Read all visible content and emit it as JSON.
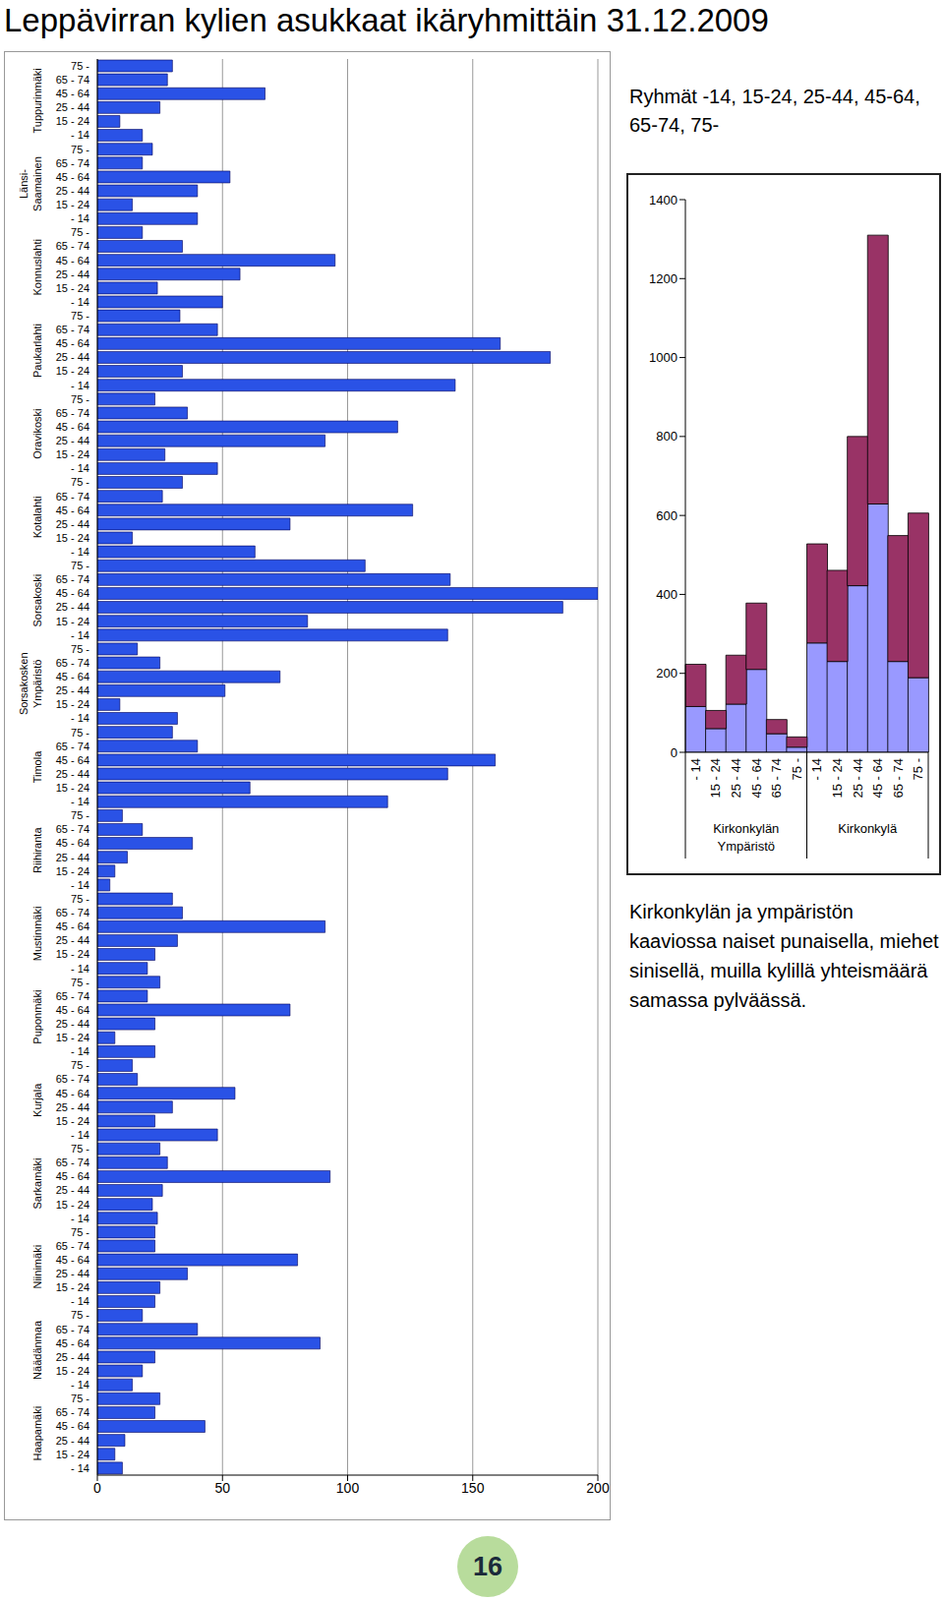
{
  "title": "Leppävirran kylien asukkaat ikäryhmittäin 31.12.2009",
  "page_number": 16,
  "chart_data": [
    {
      "type": "bar",
      "orientation": "horizontal",
      "groups": [
        "Tuppurinmäki",
        "Länsi-\nSaamainen",
        "Konnuslahti",
        "Paukarlahti",
        "Oravikoski",
        "Kotalahti",
        "Sorsakoski",
        "Sorsakosken\nYmpäristö",
        "Timola",
        "Riihiranta",
        "Mustinmäki",
        "Puponmäki",
        "Kurjala",
        "Sarkamäki",
        "Niinimäki",
        "Näädänmaa",
        "Haapamäki"
      ],
      "categories": [
        "75 -",
        "65 - 74",
        "45 - 64",
        "25 - 44",
        "15 - 24",
        "- 14",
        "75 -",
        "65 - 74",
        "45 - 64",
        "25 - 44",
        "15 - 24",
        "- 14",
        "75 -",
        "65 - 74",
        "45 - 64",
        "25 - 44",
        "15 - 24",
        "- 14",
        "75 -",
        "65 - 74",
        "45 - 64",
        "25 - 44",
        "15 - 24",
        "- 14",
        "75 -",
        "65 - 74",
        "45 - 64",
        "25 - 44",
        "15 - 24",
        "- 14",
        "75 -",
        "65 - 74",
        "45 - 64",
        "25 - 44",
        "15 - 24",
        "- 14",
        "75 -",
        "65 - 74",
        "45 - 64",
        "25 - 44",
        "15 - 24",
        "- 14",
        "75 -",
        "65 - 74",
        "45 - 64",
        "25 - 44",
        "15 - 24",
        "- 14",
        "75 -",
        "65 - 74",
        "45 - 64",
        "25 - 44",
        "15 - 24",
        "- 14",
        "75 -",
        "65 - 74",
        "45 - 64",
        "25 - 44",
        "15 - 24",
        "- 14",
        "75 -",
        "65 - 74",
        "45 - 64",
        "25 - 44",
        "15 - 24",
        "- 14",
        "75 -",
        "65 - 74",
        "45 - 64",
        "25 - 44",
        "15 - 24",
        "- 14",
        "75 -",
        "65 - 74",
        "45 - 64",
        "25 - 44",
        "15 - 24",
        "- 14",
        "75 -",
        "65 - 74",
        "45 - 64",
        "25 - 44",
        "15 - 24",
        "- 14",
        "75 -",
        "65 - 74",
        "45 - 64",
        "25 - 44",
        "15 - 24",
        "- 14",
        "75 -",
        "65 - 74",
        "45 - 64",
        "25 - 44",
        "15 - 24",
        "- 14",
        "75 -",
        "65 - 74",
        "45 - 64",
        "25 - 44",
        "15 - 24",
        "- 14"
      ],
      "values": [
        30,
        28,
        67,
        25,
        9,
        18,
        22,
        18,
        53,
        40,
        14,
        40,
        18,
        34,
        95,
        57,
        24,
        50,
        33,
        48,
        161,
        181,
        34,
        143,
        23,
        36,
        120,
        91,
        27,
        48,
        34,
        26,
        126,
        77,
        14,
        63,
        107,
        141,
        200,
        186,
        84,
        140,
        16,
        25,
        73,
        51,
        9,
        32,
        30,
        40,
        159,
        140,
        61,
        116,
        10,
        18,
        38,
        12,
        7,
        5,
        30,
        34,
        91,
        32,
        23,
        20,
        25,
        20,
        77,
        23,
        7,
        23,
        14,
        16,
        55,
        30,
        23,
        48,
        25,
        28,
        93,
        26,
        22,
        24,
        23,
        23,
        80,
        36,
        25,
        23,
        18,
        40,
        89,
        23,
        18,
        14,
        25,
        23,
        43,
        11,
        7,
        10
      ],
      "color": "#2a52e6",
      "xlim": [
        0,
        200
      ],
      "xticks": [
        0,
        50,
        100,
        150,
        200
      ],
      "grid": true
    },
    {
      "type": "bar",
      "stacked": true,
      "subtitle": "Ryhmät -14, 15-24, 25-44, 45-64, 65-74, 75-",
      "annotation": "Kirkonkylän ja ympäristön kaaviossa naiset punaisella, miehet sinisellä, muilla kylillä yhteismäärä samassa pylväässä.",
      "groups": [
        "Kirkonkylän\nYmpäristö",
        "Kirkonkylä"
      ],
      "categories": [
        "- 14",
        "15 - 24",
        "25 - 44",
        "45 - 64",
        "65 - 74",
        "75 -",
        "- 14",
        "15 - 24",
        "25 - 44",
        "45 - 64",
        "65 - 74",
        "75 -"
      ],
      "series": [
        {
          "color": "#9999ff",
          "values": [
            116,
            60,
            122,
            210,
            47,
            13,
            277,
            230,
            422,
            629,
            230,
            189
          ]
        },
        {
          "color": "#993366",
          "values": [
            107,
            46,
            124,
            168,
            36,
            26,
            251,
            231,
            378,
            681,
            319,
            417
          ]
        }
      ],
      "ylim": [
        0,
        1400
      ],
      "yticks": [
        0,
        200,
        400,
        600,
        800,
        1000,
        1200,
        1400
      ],
      "grid": false
    }
  ]
}
